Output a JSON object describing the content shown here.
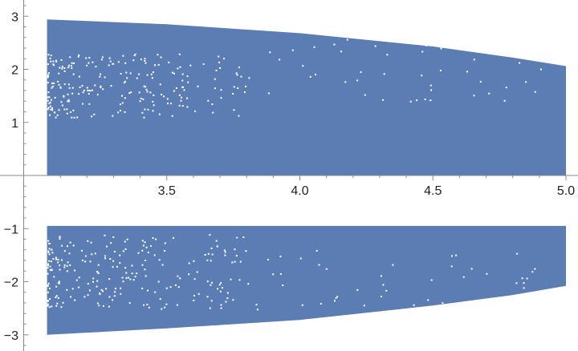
{
  "chart_data": {
    "type": "area",
    "title": "",
    "xlabel": "",
    "ylabel": "",
    "xlim": [
      3.0,
      5.0
    ],
    "ylim": [
      -3.2,
      3.2
    ],
    "x_ticks": [
      {
        "value": 3.5,
        "label": "3.5"
      },
      {
        "value": 4.0,
        "label": "4.0"
      },
      {
        "value": 4.5,
        "label": "4.5"
      },
      {
        "value": 5.0,
        "label": "5.0"
      }
    ],
    "y_ticks": [
      {
        "value": 3,
        "label": "3"
      },
      {
        "value": 2,
        "label": "2"
      },
      {
        "value": 1,
        "label": "1"
      },
      {
        "value": -1,
        "label": "−1"
      },
      {
        "value": -2,
        "label": "−2"
      },
      {
        "value": -3,
        "label": "−3"
      }
    ],
    "fill_color": "#5b7db3",
    "axis_color": "#8a8a8a",
    "series": [
      {
        "band": "upper",
        "x": [
          3.05,
          3.5,
          4.0,
          4.5,
          4.8,
          5.0
        ],
        "y_low": [
          0.0,
          0.0,
          0.0,
          0.0,
          0.0,
          0.0
        ],
        "y_high": [
          2.94,
          2.85,
          2.68,
          2.43,
          2.22,
          2.06
        ]
      },
      {
        "band": "lower",
        "x": [
          3.05,
          3.5,
          4.0,
          4.5,
          4.8,
          5.0
        ],
        "y_low": [
          -3.0,
          -2.88,
          -2.72,
          -2.45,
          -2.25,
          -2.08
        ],
        "y_high": [
          -0.95,
          -0.95,
          -0.95,
          -0.95,
          -0.95,
          -0.95
        ]
      }
    ],
    "gaps": [
      {
        "x_range": [
          3.05,
          3.8
        ],
        "y_range": [
          1.1,
          2.3
        ]
      },
      {
        "x_range": [
          3.05,
          3.8
        ],
        "y_range": [
          -2.5,
          -1.1
        ]
      }
    ]
  }
}
